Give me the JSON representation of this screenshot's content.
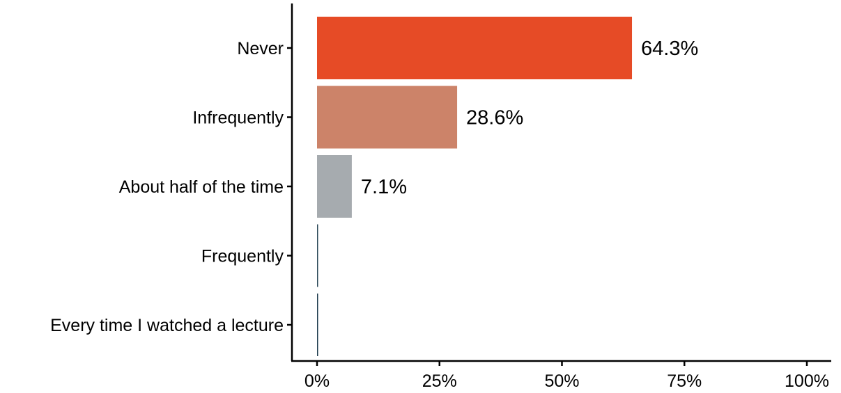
{
  "chart_data": {
    "type": "bar",
    "orientation": "horizontal",
    "categories": [
      "Never",
      "Infrequently",
      "About half of the time",
      "Frequently",
      "Every time I watched a lecture"
    ],
    "values": [
      64.3,
      28.6,
      7.1,
      0,
      0
    ],
    "value_labels": [
      "64.3%",
      "28.6%",
      "7.1%",
      "",
      ""
    ],
    "colors": [
      "#e64b26",
      "#cc8369",
      "#a6abaf",
      "#2c4a5a",
      "#1f3d4f"
    ],
    "xlim": [
      0,
      100
    ],
    "x_ticks": [
      0,
      25,
      50,
      75,
      100
    ],
    "x_tick_labels": [
      "0%",
      "25%",
      "50%",
      "75%",
      "100%"
    ],
    "title": "",
    "xlabel": "",
    "ylabel": "",
    "grid": false,
    "legend": "none"
  }
}
